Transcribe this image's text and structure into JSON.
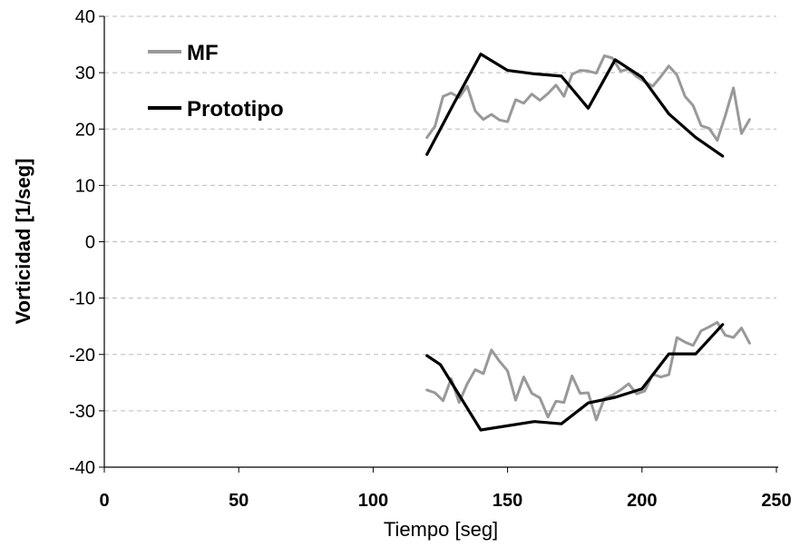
{
  "chart_data": {
    "type": "line",
    "xlabel": "Tiempo [seg]",
    "ylabel": "Vorticidad [1/seg]",
    "xlim": [
      0,
      250
    ],
    "ylim": [
      -40,
      40
    ],
    "xticks": [
      0,
      50,
      100,
      150,
      200,
      250
    ],
    "yticks": [
      40,
      30,
      20,
      10,
      0,
      -10,
      -20,
      -30,
      -40
    ],
    "grid": "horizontal dashed",
    "legend_position": "top-left",
    "series": [
      {
        "name": "MF",
        "color": "#999999",
        "segments": [
          [
            [
              120,
              18.5
            ],
            [
              123,
              20.5
            ],
            [
              126,
              25.8
            ],
            [
              129,
              26.4
            ],
            [
              132,
              25.6
            ],
            [
              135,
              27.6
            ],
            [
              138,
              23.2
            ],
            [
              141,
              21.7
            ],
            [
              144,
              22.6
            ],
            [
              147,
              21.6
            ],
            [
              150,
              21.3
            ],
            [
              153,
              25.2
            ],
            [
              156,
              24.6
            ],
            [
              159,
              26.2
            ],
            [
              162,
              25.1
            ],
            [
              165,
              26.3
            ],
            [
              168,
              27.8
            ],
            [
              171,
              25.8
            ],
            [
              174,
              29.7
            ],
            [
              177,
              30.4
            ],
            [
              180,
              30.3
            ],
            [
              183,
              29.9
            ],
            [
              186,
              33.0
            ],
            [
              189,
              32.6
            ],
            [
              192,
              30.3
            ],
            [
              195,
              30.6
            ],
            [
              198,
              29.3
            ],
            [
              201,
              28.4
            ],
            [
              204,
              27.6
            ],
            [
              207,
              29.3
            ],
            [
              210,
              31.2
            ],
            [
              213,
              29.6
            ],
            [
              216,
              25.8
            ],
            [
              219,
              24.2
            ],
            [
              222,
              20.6
            ],
            [
              225,
              20.1
            ],
            [
              228,
              18.0
            ],
            [
              231,
              22.4
            ],
            [
              234,
              27.3
            ],
            [
              237,
              19.2
            ],
            [
              240,
              21.7
            ]
          ],
          [
            [
              120,
              -26.3
            ],
            [
              123,
              -26.8
            ],
            [
              126,
              -28.2
            ],
            [
              129,
              -24.3
            ],
            [
              132,
              -28.5
            ],
            [
              135,
              -25.2
            ],
            [
              138,
              -22.7
            ],
            [
              141,
              -23.4
            ],
            [
              144,
              -19.2
            ],
            [
              147,
              -21.2
            ],
            [
              150,
              -22.9
            ],
            [
              153,
              -28.1
            ],
            [
              156,
              -24.0
            ],
            [
              159,
              -26.9
            ],
            [
              162,
              -27.7
            ],
            [
              165,
              -31.1
            ],
            [
              168,
              -28.3
            ],
            [
              171,
              -28.5
            ],
            [
              174,
              -23.8
            ],
            [
              177,
              -26.9
            ],
            [
              180,
              -26.8
            ],
            [
              183,
              -31.6
            ],
            [
              186,
              -27.8
            ],
            [
              189,
              -27.2
            ],
            [
              192,
              -26.3
            ],
            [
              195,
              -25.2
            ],
            [
              198,
              -27.0
            ],
            [
              201,
              -26.5
            ],
            [
              204,
              -23.5
            ],
            [
              207,
              -24.0
            ],
            [
              210,
              -23.6
            ],
            [
              213,
              -17.0
            ],
            [
              216,
              -17.8
            ],
            [
              219,
              -18.4
            ],
            [
              222,
              -15.8
            ],
            [
              225,
              -15.1
            ],
            [
              228,
              -14.3
            ],
            [
              231,
              -16.6
            ],
            [
              234,
              -17.0
            ],
            [
              237,
              -15.3
            ],
            [
              240,
              -18.0
            ]
          ]
        ]
      },
      {
        "name": "Prototipo",
        "color": "#000000",
        "segments": [
          [
            [
              120,
              15.5
            ],
            [
              130,
              24.5
            ],
            [
              140,
              33.3
            ],
            [
              150,
              30.4
            ],
            [
              160,
              29.8
            ],
            [
              170,
              29.4
            ],
            [
              180,
              23.7
            ],
            [
              190,
              32.3
            ],
            [
              200,
              29.2
            ],
            [
              210,
              22.7
            ],
            [
              220,
              18.5
            ],
            [
              230,
              15.2
            ]
          ],
          [
            [
              120,
              -20.2
            ],
            [
              125,
              -21.8
            ],
            [
              140,
              -33.4
            ],
            [
              160,
              -31.9
            ],
            [
              170,
              -32.3
            ],
            [
              180,
              -28.6
            ],
            [
              190,
              -27.6
            ],
            [
              200,
              -26.1
            ],
            [
              210,
              -19.9
            ],
            [
              220,
              -19.9
            ],
            [
              230,
              -14.7
            ]
          ]
        ]
      }
    ]
  }
}
